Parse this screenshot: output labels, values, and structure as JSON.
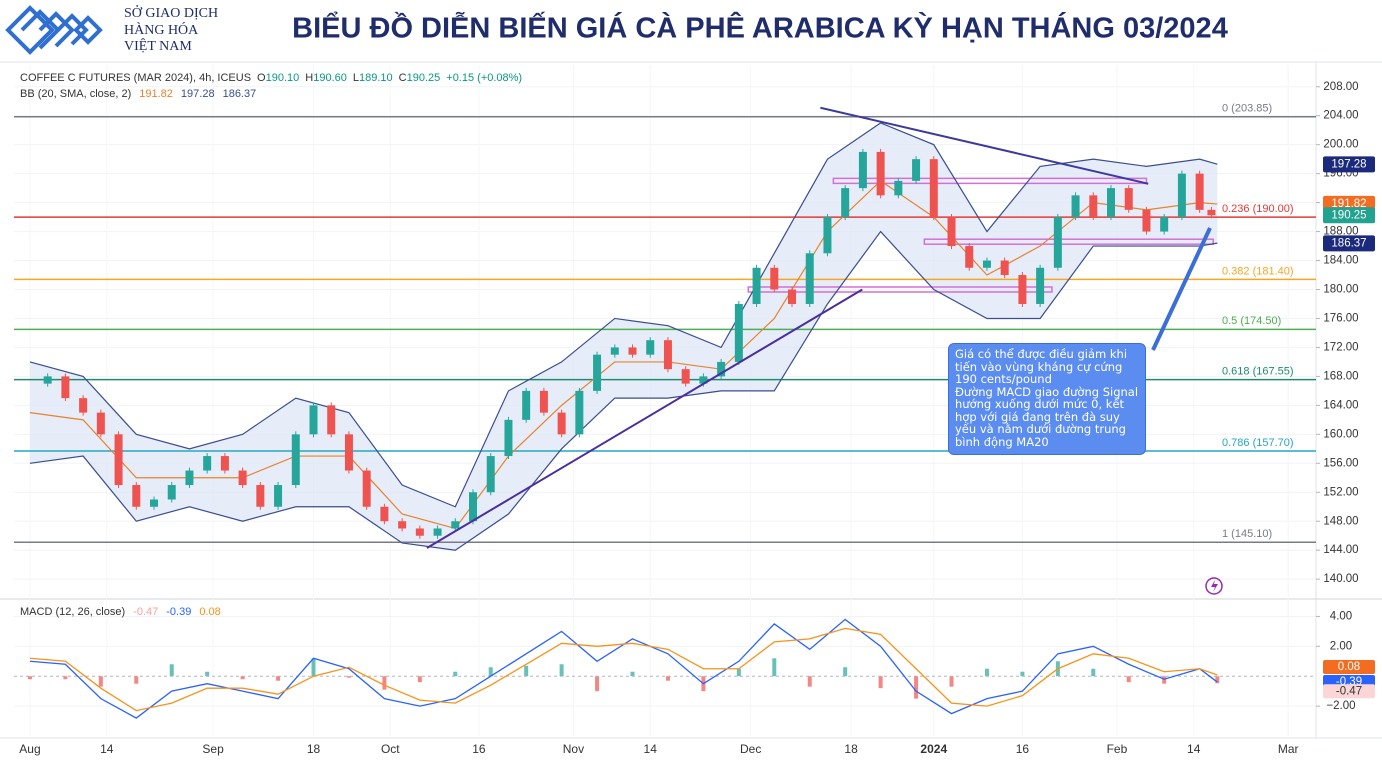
{
  "header": {
    "logo_lines": [
      "SỞ GIAO DỊCH",
      "HÀNG HÓA",
      "VIỆT NAM"
    ],
    "title": "BIỂU ĐỒ DIỄN BIẾN GIÁ CÀ PHÊ ARABICA KỲ HẠN THÁNG 03/2024"
  },
  "chart_data": [
    {
      "type": "candlestick",
      "legend": {
        "symbol": "COFFEE C FUTURES (MAR 2024), 4h, ICEUS",
        "ohlc": [
          {
            "label": "O",
            "value": "190.10"
          },
          {
            "label": "H",
            "value": "190.60"
          },
          {
            "label": "L",
            "value": "189.10"
          },
          {
            "label": "C",
            "value": "190.25"
          }
        ],
        "change": "+0.15 (+0.08%)",
        "bb_name": "BB (20, SMA, close, 2)",
        "bb_values": [
          "191.82",
          "197.28",
          "186.37"
        ]
      },
      "xlim": [
        -2.7,
        217.7
      ],
      "xticks": [
        {
          "value": 0,
          "label": "Aug"
        },
        {
          "value": 13,
          "label": "14"
        },
        {
          "value": 31,
          "label": "Sep"
        },
        {
          "value": 48,
          "label": "18"
        },
        {
          "value": 61,
          "label": "Oct"
        },
        {
          "value": 76,
          "label": "16"
        },
        {
          "value": 92,
          "label": "Nov"
        },
        {
          "value": 105,
          "label": "14"
        },
        {
          "value": 122,
          "label": "Dec"
        },
        {
          "value": 139,
          "label": "18"
        },
        {
          "value": 153,
          "label": "2024"
        },
        {
          "value": 168,
          "label": "16"
        },
        {
          "value": 184,
          "label": "Feb"
        },
        {
          "value": 197,
          "label": "14"
        },
        {
          "value": 213,
          "label": "Mar"
        }
      ],
      "ylim": [
        137.4,
        211
      ],
      "yticks": [
        {
          "value": 140,
          "label": "140.00"
        },
        {
          "value": 144,
          "label": "144.00"
        },
        {
          "value": 148,
          "label": "148.00"
        },
        {
          "value": 152,
          "label": "152.00"
        },
        {
          "value": 156,
          "label": "156.00"
        },
        {
          "value": 160,
          "label": "160.00"
        },
        {
          "value": 164,
          "label": "164.00"
        },
        {
          "value": 168,
          "label": "168.00"
        },
        {
          "value": 172,
          "label": "172.00"
        },
        {
          "value": 176,
          "label": "176.00"
        },
        {
          "value": 180,
          "label": "180.00"
        },
        {
          "value": 184,
          "label": "184.00"
        },
        {
          "value": 188,
          "label": "188.00"
        },
        {
          "value": 192,
          "label": "192.00"
        },
        {
          "value": 196,
          "label": "196.00"
        },
        {
          "value": 200,
          "label": "200.00"
        },
        {
          "value": 204,
          "label": "204.00"
        },
        {
          "value": 208,
          "label": "208.00"
        }
      ],
      "grid": true,
      "x": [
        0,
        3,
        6,
        9,
        12,
        15,
        18,
        21,
        24,
        27,
        30,
        33,
        36,
        39,
        42,
        45,
        48,
        51,
        54,
        57,
        60,
        63,
        66,
        69,
        72,
        75,
        78,
        81,
        84,
        87,
        90,
        93,
        96,
        99,
        102,
        105,
        108,
        111,
        114,
        117,
        120,
        123,
        126,
        129,
        132,
        135,
        138,
        141,
        144,
        147,
        150,
        153,
        156,
        159,
        162,
        165,
        168,
        171,
        174,
        177,
        180,
        183,
        186,
        189,
        192,
        195,
        198,
        200
      ],
      "values": [
        167,
        168,
        165,
        163,
        160,
        153,
        150,
        151,
        153,
        155,
        157,
        155,
        153,
        150,
        153,
        160,
        164,
        160,
        155,
        150,
        148,
        147,
        146,
        147,
        148,
        152,
        157,
        162,
        166,
        163,
        160,
        166,
        171,
        172,
        171,
        173,
        169,
        167,
        168,
        170,
        178,
        183,
        180,
        178,
        185,
        190,
        194,
        199,
        193,
        195,
        198,
        190,
        186,
        183,
        184,
        182,
        178,
        183,
        190,
        193,
        190,
        194,
        191,
        188,
        190,
        196,
        191,
        190.25
      ],
      "up_color": "#26a69a",
      "down_color": "#ef5350",
      "bands": {
        "x": [
          0,
          9,
          18,
          27,
          36,
          45,
          54,
          63,
          72,
          81,
          90,
          99,
          108,
          117,
          126,
          135,
          144,
          153,
          162,
          171,
          180,
          189,
          198,
          201
        ],
        "series": [
          {
            "name": "upper",
            "color": "#3a4d8f",
            "values": [
              170,
              168,
              160,
              158,
              160,
              165,
              163,
              153,
              150,
              166,
              170,
              176,
              175,
              172,
              185,
              198,
              203,
              200,
              188,
              197,
              198,
              197,
              198,
              197.3
            ]
          },
          {
            "name": "basis",
            "color": "#e8822f",
            "values": [
              163,
              162,
              154,
              154,
              154,
              157,
              157,
              149,
              147,
              157,
              164,
              170,
              170,
              169,
              176,
              188,
              195,
              190,
              182,
              186,
              192,
              191,
              192,
              191.8
            ]
          },
          {
            "name": "lower",
            "color": "#3a4d8f",
            "values": [
              156,
              157,
              148,
              150,
              148,
              150,
              150,
              145,
              144,
              149,
              158,
              165,
              165,
              166,
              166,
              178,
              188,
              180,
              176,
              176,
              186,
              186,
              186,
              186.4
            ]
          }
        ],
        "fill": "#dbe6f7"
      },
      "fib_levels": [
        {
          "value": 203.85,
          "label": "0 (203.85)",
          "color": "#787b86"
        },
        {
          "value": 190,
          "label": "0.236 (190.00)",
          "color": "#e53935"
        },
        {
          "value": 181.4,
          "label": "0.382 (181.40)",
          "color": "#f5a623"
        },
        {
          "value": 174.5,
          "label": "0.5 (174.50)",
          "color": "#4caf50"
        },
        {
          "value": 167.55,
          "label": "0.618 (167.55)",
          "color": "#1f8a70"
        },
        {
          "value": 157.7,
          "label": "0.786 (157.70)",
          "color": "#26a6c4"
        },
        {
          "value": 145.1,
          "label": "1 (145.10)",
          "color": "#787b86"
        }
      ],
      "trendlines": [
        {
          "x": [
            133.8,
            189.3
          ],
          "values": [
            205.1,
            194.6
          ],
          "color": "#3d3a9e"
        },
        {
          "x": [
            67.2,
            140.9
          ],
          "values": [
            144.3,
            180
          ],
          "color": "#4b2e9e"
        }
      ],
      "zones": [
        {
          "x": [
            136,
            189
          ],
          "value": 195,
          "color": "#d46fd6"
        },
        {
          "x": [
            151.4,
            200.3
          ],
          "value": 186.6,
          "color": "#d46fd6"
        },
        {
          "x": [
            121.6,
            173
          ],
          "value": 180,
          "color": "#d46fd6"
        }
      ],
      "price_tags": [
        {
          "value": 197.28,
          "color": "#1c2a7d"
        },
        {
          "value": 191.82,
          "color": "#f26d21"
        },
        {
          "value": 190.25,
          "color": "#22a28f"
        },
        {
          "value": 186.37,
          "color": "#1c2a7d"
        }
      ],
      "annotation": [
        "Giá có thể được điều giảm khi tiến vào vùng kháng cự cứng 190 cents/pound",
        "Đường MACD giao đường Signal hướng xuống dưới mức 0, kết hợp với giá đang trên đà suy yếu và nằm dưới đường trung bình động MA20"
      ]
    },
    {
      "type": "macd",
      "legend": {
        "name": "MACD (12, 26, close)",
        "values": [
          "-0.47",
          "-0.39",
          "0.08"
        ]
      },
      "ylim": [
        -4,
        5.1
      ],
      "yticks": [
        {
          "value": -2,
          "label": "−2.00"
        },
        {
          "value": 2,
          "label": "2.00"
        },
        {
          "value": 4,
          "label": "4.00"
        }
      ],
      "grid": true,
      "x": [
        0,
        6,
        12,
        18,
        24,
        30,
        36,
        42,
        48,
        54,
        60,
        66,
        72,
        78,
        84,
        90,
        96,
        102,
        108,
        114,
        120,
        126,
        132,
        138,
        144,
        150,
        156,
        162,
        168,
        174,
        180,
        186,
        192,
        198,
        201
      ],
      "series": [
        {
          "name": "macd",
          "color": "#2962ff",
          "values": [
            1.0,
            0.8,
            -1.5,
            -2.8,
            -1.0,
            -0.5,
            -1.0,
            -1.5,
            1.2,
            0.5,
            -1.5,
            -2.0,
            -1.5,
            0,
            1.5,
            3.0,
            1.0,
            2.5,
            1.5,
            -0.5,
            1.0,
            3.5,
            1.8,
            3.8,
            2.0,
            -1.0,
            -2.5,
            -1.5,
            -1.0,
            1.5,
            2.0,
            0.8,
            -0.2,
            0.5,
            -0.39
          ]
        },
        {
          "name": "signal",
          "color": "#f7931a",
          "values": [
            1.2,
            1.0,
            -0.8,
            -2.3,
            -1.8,
            -0.8,
            -0.8,
            -1.2,
            0,
            0.6,
            -0.6,
            -1.6,
            -1.8,
            -0.6,
            0.8,
            2.2,
            2.0,
            2.2,
            1.8,
            0.5,
            0.5,
            2.3,
            2.5,
            3.2,
            2.8,
            0.5,
            -1.8,
            -2.0,
            -1.3,
            0.5,
            1.5,
            1.2,
            0.3,
            0.5,
            0.08
          ]
        }
      ],
      "histogram": {
        "values": [
          -0.2,
          -0.2,
          -0.7,
          -0.5,
          0.8,
          0.3,
          -0.2,
          -0.3,
          1.2,
          -0.1,
          -0.9,
          -0.4,
          0.3,
          0.6,
          0.7,
          0.8,
          -1.0,
          0.3,
          -0.3,
          -1.0,
          0.5,
          1.2,
          -0.7,
          0.6,
          -0.8,
          -1.5,
          -0.7,
          0.5,
          0.3,
          1.0,
          0.5,
          -0.4,
          -0.5,
          0,
          -0.47
        ],
        "up_color": "#26a69a",
        "down_color": "#ef5350"
      },
      "price_tags": [
        {
          "value": 0.08,
          "color": "#f26d21",
          "text_color": "#ffffff"
        },
        {
          "value": -0.39,
          "color": "#2962ff",
          "text_color": "#ffffff"
        },
        {
          "value": -0.47,
          "color": "#fcd6d6",
          "text_color": "#333333"
        }
      ]
    }
  ]
}
